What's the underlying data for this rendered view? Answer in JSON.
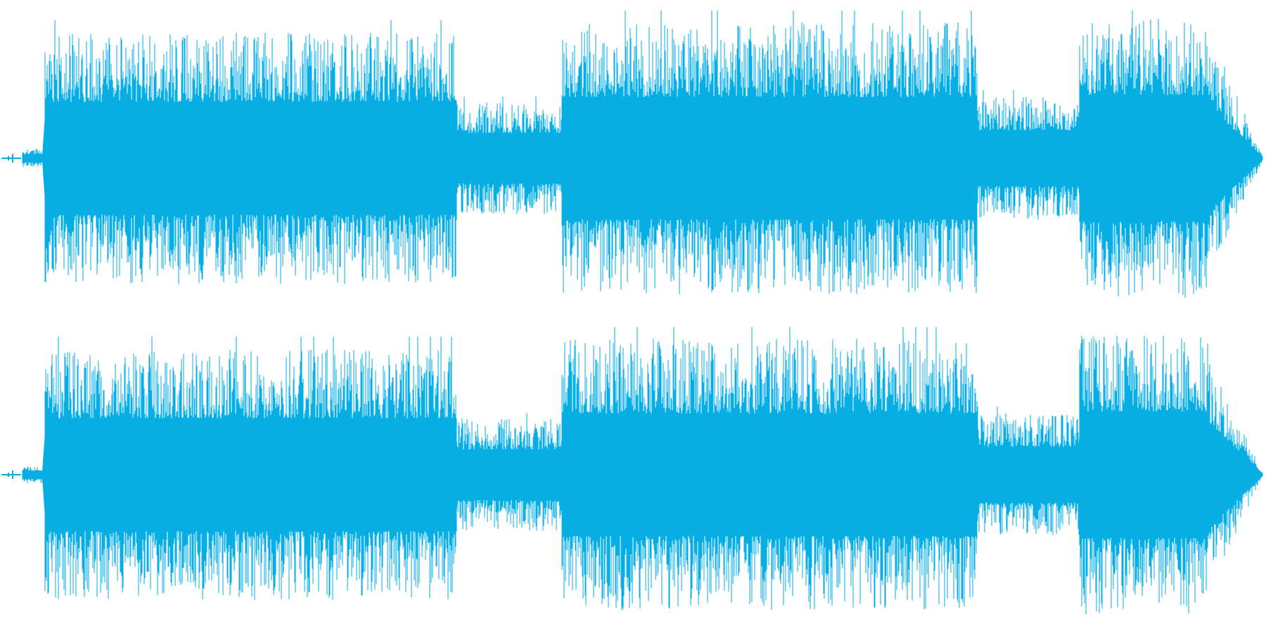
{
  "colors": {
    "background": "#ffffff",
    "waveform": "#06aee3"
  },
  "waveform": {
    "channel_count": 2,
    "channels": [
      {
        "name": "",
        "role": "upper-channel"
      },
      {
        "name": "",
        "role": "lower-channel"
      }
    ],
    "segments": [
      {
        "start": 0.0,
        "end": 0.018,
        "level": 0.06,
        "note": "lead-in"
      },
      {
        "start": 0.018,
        "end": 0.35,
        "level": 0.85
      },
      {
        "start": 0.35,
        "end": 0.435,
        "level": 0.38
      },
      {
        "start": 0.435,
        "end": 0.77,
        "level": 0.92
      },
      {
        "start": 0.77,
        "end": 0.852,
        "level": 0.42
      },
      {
        "start": 0.852,
        "end": 0.955,
        "level": 0.95
      },
      {
        "start": 0.955,
        "end": 1.0,
        "level": 0.1,
        "note": "fade-out"
      }
    ]
  }
}
